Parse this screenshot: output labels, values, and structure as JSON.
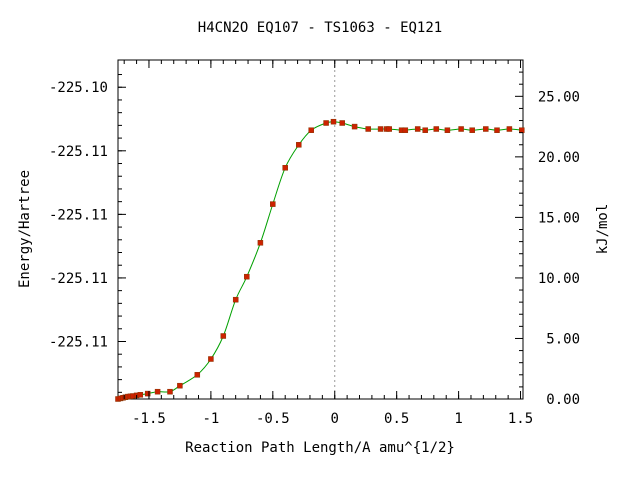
{
  "chart_data": {
    "type": "line",
    "title": "H4CN2O   EQ107 - TS1063 - EQ121",
    "xlabel": "Reaction Path Length/A amu^{1/2}",
    "ylabel_left": "Energy/Hartree",
    "ylabel_right": "kJ/mol",
    "xlim": [
      -1.75,
      1.52
    ],
    "ylim_kj": [
      0.0,
      28.0
    ],
    "x_ticks": [
      {
        "value": -1.5,
        "label": "-1.5"
      },
      {
        "value": -1.0,
        "label": "-1"
      },
      {
        "value": -0.5,
        "label": "-0.5"
      },
      {
        "value": 0.0,
        "label": "0"
      },
      {
        "value": 0.5,
        "label": "0.5"
      },
      {
        "value": 1.0,
        "label": "1"
      },
      {
        "value": 1.5,
        "label": "1.5"
      }
    ],
    "left_ticks": [
      {
        "kj": 4.75,
        "label": "-225.11"
      },
      {
        "kj": 10.0,
        "label": "-225.11"
      },
      {
        "kj": 15.25,
        "label": "-225.11"
      },
      {
        "kj": 20.5,
        "label": "-225.11"
      },
      {
        "kj": 25.75,
        "label": "-225.10"
      }
    ],
    "right_ticks": [
      {
        "kj": 0.0,
        "label": "0.00"
      },
      {
        "kj": 5.0,
        "label": "5.00"
      },
      {
        "kj": 10.0,
        "label": "10.00"
      },
      {
        "kj": 15.0,
        "label": "15.00"
      },
      {
        "kj": 20.0,
        "label": "20.00"
      },
      {
        "kj": 25.0,
        "label": "25.00"
      }
    ],
    "ts_x": 0.0,
    "series": [
      {
        "x": [
          -1.75,
          -1.73,
          -1.71,
          -1.69,
          -1.67,
          -1.65,
          -1.63,
          -1.6,
          -1.57,
          -1.51,
          -1.43,
          -1.33,
          -1.25,
          -1.11,
          -1.0,
          -0.9,
          -0.8,
          -0.71,
          -0.6,
          -0.5,
          -0.4,
          -0.29,
          -0.19,
          -0.07,
          -0.01,
          0.06,
          0.16,
          0.27,
          0.37,
          0.42,
          0.44,
          0.54,
          0.57,
          0.67,
          0.73,
          0.82,
          0.91,
          1.02,
          1.11,
          1.22,
          1.31,
          1.41,
          1.51
        ],
        "y": [
          0.0,
          0.05,
          0.1,
          0.15,
          0.2,
          0.22,
          0.25,
          0.3,
          0.35,
          0.45,
          0.6,
          0.6,
          1.1,
          2.0,
          3.3,
          5.2,
          8.2,
          10.1,
          12.9,
          16.1,
          19.1,
          21.0,
          22.2,
          22.8,
          22.9,
          22.8,
          22.5,
          22.3,
          22.3,
          22.3,
          22.3,
          22.2,
          22.2,
          22.3,
          22.2,
          22.3,
          22.2,
          22.3,
          22.2,
          22.3,
          22.2,
          22.3,
          22.2
        ]
      }
    ],
    "colors": {
      "line": "#00a000",
      "marker": "#cc2200",
      "ts_line": "#999999"
    }
  }
}
